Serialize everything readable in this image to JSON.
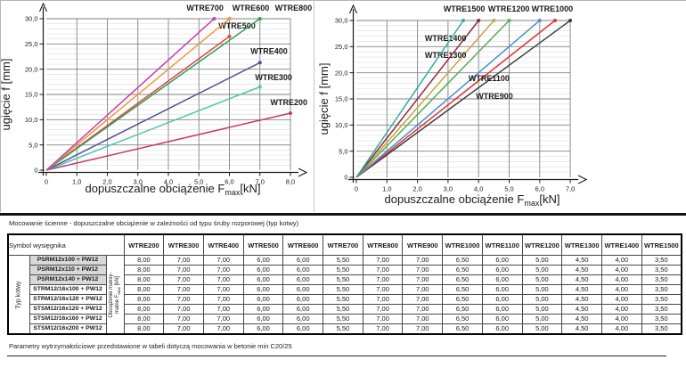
{
  "chart_data": [
    {
      "type": "line",
      "side": "left",
      "title": "",
      "xlabel": "dopuszczalne obciążenie Fmax [kN]",
      "xlabel_parts": {
        "pre": "dopuszczalne obciążenie F",
        "sub": "max",
        "post": "[kN]"
      },
      "ylabel": "ugięcie f [mm]",
      "xlim": [
        0,
        8
      ],
      "ylim": [
        0,
        30
      ],
      "x_ticks": [
        "0",
        "1,0",
        "2,0",
        "3,0",
        "4,0",
        "5,0",
        "6,0",
        "7,0",
        "8,0"
      ],
      "y_ticks": [
        "0",
        "5,0",
        "10,0",
        "15,0",
        "20,0",
        "25,0",
        "30,0"
      ],
      "grid": "horizontal minor every 1 mm, horizontal major every 5 mm, vertical every 1 kN",
      "legend_position": "labels-on-lines",
      "series": [
        {
          "name": "WTRE200",
          "color": "#c43a67",
          "points": [
            [
              0,
              0
            ],
            [
              8.0,
              11.3
            ]
          ],
          "label_at": [
            7.95,
            12.9
          ]
        },
        {
          "name": "WTRE300",
          "color": "#52c4a9",
          "points": [
            [
              0,
              0
            ],
            [
              7.0,
              16.5
            ]
          ],
          "label_at": [
            7.45,
            17.8
          ]
        },
        {
          "name": "WTRE400",
          "color": "#50509b",
          "points": [
            [
              0,
              0
            ],
            [
              7.0,
              21.3
            ]
          ],
          "label_at": [
            7.3,
            23.0
          ]
        },
        {
          "name": "WTRE500",
          "color": "#e2443a",
          "points": [
            [
              0,
              0
            ],
            [
              6.0,
              26.5
            ]
          ],
          "label_at": [
            6.25,
            28.1
          ]
        },
        {
          "name": "WTRE800",
          "color": "#2f9e58",
          "points": [
            [
              0,
              0
            ],
            [
              7.0,
              30.0
            ]
          ],
          "label_at": [
            8.1,
            31.6
          ]
        },
        {
          "name": "WTRE600",
          "color": "#f1953c",
          "points": [
            [
              0,
              0
            ],
            [
              6.0,
              30.0
            ]
          ],
          "label_at": [
            6.7,
            31.6
          ]
        },
        {
          "name": "WTRE700",
          "color": "#c840ac",
          "points": [
            [
              0,
              0
            ],
            [
              5.5,
              30.0
            ]
          ],
          "label_at": [
            5.2,
            31.6
          ]
        }
      ]
    },
    {
      "type": "line",
      "side": "right",
      "title": "",
      "xlabel": "dopuszczalne obciążenie Fmax [kN]",
      "xlabel_parts": {
        "pre": "dopuszczalne obciążenie F",
        "sub": "max",
        "post": "[kN]"
      },
      "ylabel": "ugięcie f [mm]",
      "xlim": [
        0,
        7
      ],
      "ylim": [
        0,
        30
      ],
      "x_ticks": [
        "0",
        "1,0",
        "2,0",
        "3,0",
        "4,0",
        "5,0",
        "6,0",
        "7,0"
      ],
      "y_ticks": [
        "0",
        "5,0",
        "10,0",
        "15,0",
        "20,0",
        "25,0",
        "30,0"
      ],
      "grid": "horizontal minor every 1 mm, horizontal major every 5 mm, vertical every 1 kN",
      "legend_position": "labels-on-lines",
      "series": [
        {
          "name": "WTRE900",
          "color": "#3d3d3d",
          "points": [
            [
              0,
              0
            ],
            [
              7.0,
              30.0
            ]
          ],
          "label_at": [
            4.52,
            15.0
          ]
        },
        {
          "name": "WTRE1000",
          "color": "#e23434",
          "points": [
            [
              0,
              0
            ],
            [
              6.5,
              30.0
            ]
          ],
          "label_at": [
            6.41,
            31.7
          ]
        },
        {
          "name": "WTRE1100",
          "color": "#4a90d0",
          "points": [
            [
              0,
              0
            ],
            [
              6.0,
              30.0
            ]
          ],
          "label_at": [
            4.34,
            18.4
          ]
        },
        {
          "name": "WTRE1200",
          "color": "#57ad53",
          "points": [
            [
              0,
              0
            ],
            [
              5.0,
              30.0
            ]
          ],
          "label_at": [
            4.99,
            31.7
          ]
        },
        {
          "name": "WTRE1300",
          "color": "#c9a23f",
          "points": [
            [
              0,
              0
            ],
            [
              4.5,
              30.0
            ]
          ],
          "label_at": [
            2.92,
            22.8
          ]
        },
        {
          "name": "WTRE1400",
          "color": "#8e2840",
          "points": [
            [
              0,
              0
            ],
            [
              4.0,
              30.0
            ]
          ],
          "label_at": [
            2.92,
            26.1
          ]
        },
        {
          "name": "WTRE1500",
          "color": "#35a99e",
          "points": [
            [
              0,
              0
            ],
            [
              3.5,
              30.0
            ]
          ],
          "label_at": [
            3.53,
            31.7
          ]
        }
      ]
    }
  ],
  "table": {
    "title": "Mocowanie ścienne - dopuszczalne obciążenie w zależności od typu śruby rozporowej (typ kotwy)",
    "symbol_header": "Symbol wysięgnika",
    "row_group_label": "Typ kotwy",
    "load_header_line1": "Obciążenie maksy-",
    "load_header_line2_pre": "malne F",
    "load_header_sub": "max",
    "load_header_line2_post": " [kN]",
    "columns": [
      "WTRE200",
      "WTRE300",
      "WTRE400",
      "WTRE500",
      "WTRE600",
      "WTRE700",
      "WTRE800",
      "WTRE900",
      "WTRE1000",
      "WTRE1100",
      "WTRE1200",
      "WTRE1300",
      "WTRE1400",
      "WTRE1500"
    ],
    "rows": [
      {
        "label": "PSRM12x100 + PW12",
        "shaded": true,
        "values": [
          "8,00",
          "7,00",
          "7,00",
          "6,00",
          "6,00",
          "5,50",
          "7,00",
          "7,00",
          "6,50",
          "6,00",
          "5,00",
          "4,50",
          "4,00",
          "3,50"
        ]
      },
      {
        "label": "PSRM12x110 + PW12",
        "shaded": true,
        "values": [
          "8,00",
          "7,00",
          "7,00",
          "6,00",
          "6,00",
          "5,50",
          "7,00",
          "7,00",
          "6,50",
          "6,00",
          "5,00",
          "4,50",
          "4,00",
          "3,50"
        ]
      },
      {
        "label": "PSRM12x140 + PW12",
        "shaded": true,
        "values": [
          "8,00",
          "7,00",
          "7,00",
          "6,00",
          "6,00",
          "5,50",
          "7,00",
          "7,00",
          "6,50",
          "6,00",
          "5,00",
          "4,50",
          "4,00",
          "3,50"
        ]
      },
      {
        "label": "STRM12/16x100 + PW12",
        "shaded": false,
        "values": [
          "8,00",
          "7,00",
          "7,00",
          "6,00",
          "6,00",
          "5,50",
          "7,00",
          "7,00",
          "6,50",
          "6,00",
          "5,00",
          "4,50",
          "4,00",
          "3,50"
        ]
      },
      {
        "label": "STRM12/16x120 + PW12",
        "shaded": false,
        "values": [
          "8,00",
          "7,00",
          "7,00",
          "6,00",
          "6,00",
          "5,50",
          "7,00",
          "7,00",
          "6,50",
          "6,00",
          "5,00",
          "4,50",
          "4,00",
          "3,50"
        ]
      },
      {
        "label": "STSM12/16x120 + PW12",
        "shaded": false,
        "values": [
          "8,00",
          "7,00",
          "7,00",
          "6,00",
          "6,00",
          "5,50",
          "7,00",
          "7,00",
          "6,50",
          "6,00",
          "5,00",
          "4,50",
          "4,00",
          "3,50"
        ]
      },
      {
        "label": "STSM12/16x160 + PW12",
        "shaded": false,
        "values": [
          "8,00",
          "7,00",
          "7,00",
          "6,00",
          "6,00",
          "5,50",
          "7,00",
          "7,00",
          "6,50",
          "6,00",
          "5,00",
          "4,50",
          "4,00",
          "3,50"
        ]
      },
      {
        "label": "STSM12/16x200 + PW12",
        "shaded": false,
        "values": [
          "8,00",
          "7,00",
          "7,00",
          "6,00",
          "6,00",
          "5,50",
          "7,00",
          "7,00",
          "6,50",
          "6,00",
          "5,00",
          "4,50",
          "4,00",
          "3,50"
        ]
      }
    ],
    "footer": "Parametry wytrzymałościowe przedstawione w tabeli dotyczą mocowania w betonie min C20/25"
  }
}
